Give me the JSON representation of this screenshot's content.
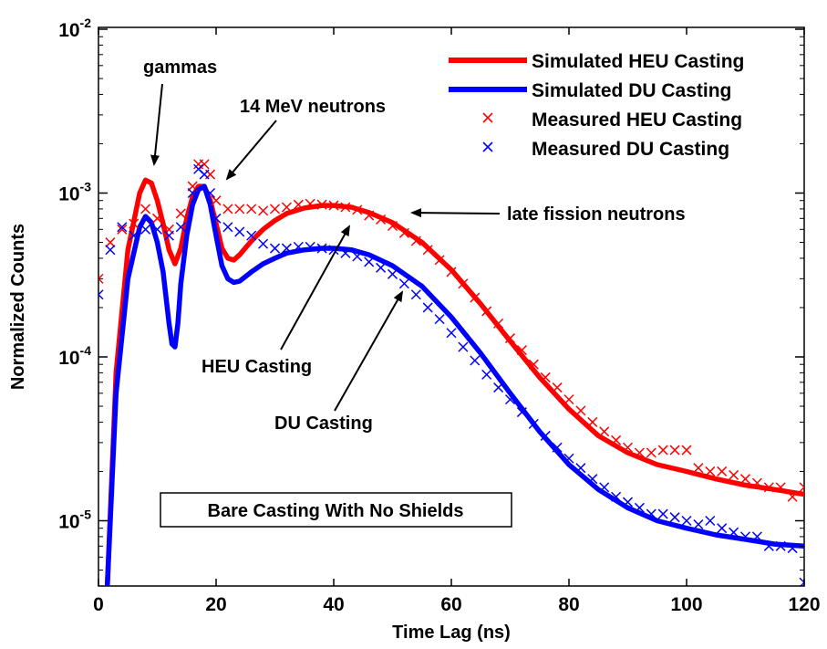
{
  "chart_data": {
    "type": "line",
    "title": "",
    "xlabel": "Time Lag (ns)",
    "ylabel": "Normalized Counts",
    "xlim": [
      0,
      120
    ],
    "ylim": [
      4e-06,
      0.01
    ],
    "yscale": "log",
    "grid": false,
    "legend_position": "top-right",
    "x_ticks": [
      "0",
      "20",
      "40",
      "60",
      "80",
      "100",
      "120"
    ],
    "y_ticks": [
      {
        "base": "10",
        "exp": "-5",
        "value": 1e-05
      },
      {
        "base": "10",
        "exp": "-4",
        "value": 0.0001
      },
      {
        "base": "10",
        "exp": "-3",
        "value": 0.001
      },
      {
        "base": "10",
        "exp": "-2",
        "value": 0.01
      }
    ],
    "series": [
      {
        "name": "Simulated HEU Casting",
        "kind": "line",
        "color": "#ff0000",
        "x": [
          1.5,
          3,
          5,
          7,
          8,
          9,
          10,
          11,
          12,
          13,
          14,
          15,
          16,
          17,
          18,
          19,
          20,
          21,
          22,
          23,
          24,
          26,
          28,
          30,
          32,
          35,
          38,
          40,
          43,
          46,
          50,
          55,
          60,
          65,
          70,
          75,
          80,
          85,
          90,
          95,
          100,
          105,
          110,
          115,
          120
        ],
        "y": [
          4e-06,
          8e-05,
          0.00045,
          0.001,
          0.0012,
          0.00115,
          0.0009,
          0.00065,
          0.00045,
          0.00037,
          0.00046,
          0.0007,
          0.00095,
          0.0011,
          0.0011,
          0.0009,
          0.00065,
          0.00046,
          0.0004,
          0.00039,
          0.00042,
          0.00051,
          0.0006,
          0.00068,
          0.00075,
          0.00081,
          0.00084,
          0.00084,
          0.00082,
          0.00076,
          0.00066,
          0.0005,
          0.00034,
          0.00021,
          0.000125,
          7.5e-05,
          4.8e-05,
          3.3e-05,
          2.6e-05,
          2.2e-05,
          2e-05,
          1.8e-05,
          1.65e-05,
          1.55e-05,
          1.45e-05
        ]
      },
      {
        "name": "Simulated DU Casting",
        "kind": "line",
        "color": "#0000ff",
        "x": [
          1.5,
          3,
          5,
          7,
          8,
          9,
          10,
          11,
          12,
          12.5,
          13,
          13.5,
          14,
          15,
          16,
          17,
          18,
          19,
          20,
          21,
          22,
          23,
          24,
          26,
          28,
          30,
          32,
          35,
          38,
          40,
          43,
          46,
          50,
          55,
          60,
          65,
          70,
          75,
          80,
          85,
          90,
          95,
          100,
          105,
          110,
          115,
          120
        ],
        "y": [
          4e-06,
          6e-05,
          0.0003,
          0.00062,
          0.00072,
          0.00066,
          0.0005,
          0.00033,
          0.00016,
          0.00012,
          0.000115,
          0.00016,
          0.00028,
          0.00055,
          0.00085,
          0.00105,
          0.0011,
          0.00085,
          0.00055,
          0.00036,
          0.0003,
          0.000285,
          0.00029,
          0.00033,
          0.00037,
          0.0004,
          0.00043,
          0.00045,
          0.00046,
          0.00046,
          0.00045,
          0.00042,
          0.00036,
          0.00027,
          0.000175,
          0.000105,
          6e-05,
          3.5e-05,
          2.2e-05,
          1.55e-05,
          1.2e-05,
          1e-05,
          9e-06,
          8.2e-06,
          7.7e-06,
          7.2e-06,
          7e-06
        ]
      },
      {
        "name": "Measured HEU Casting",
        "kind": "scatter",
        "marker": "x",
        "color": "#ff0000",
        "x": [
          0,
          2,
          4,
          6,
          8,
          10,
          12,
          14,
          16,
          17,
          18,
          19,
          20,
          22,
          24,
          26,
          28,
          30,
          32,
          34,
          36,
          38,
          40,
          42,
          44,
          46,
          48,
          50,
          52,
          54,
          56,
          58,
          60,
          62,
          64,
          66,
          68,
          70,
          72,
          74,
          76,
          78,
          80,
          82,
          84,
          86,
          88,
          90,
          92,
          94,
          96,
          98,
          100,
          102,
          104,
          106,
          108,
          110,
          112,
          114,
          116,
          118,
          120
        ],
        "y": [
          0.0003,
          0.0005,
          0.0006,
          0.00065,
          0.0008,
          0.0007,
          0.0006,
          0.00075,
          0.0011,
          0.0015,
          0.0015,
          0.0013,
          0.0009,
          0.0008,
          0.0008,
          0.0008,
          0.00078,
          0.0008,
          0.00082,
          0.00085,
          0.00086,
          0.00085,
          0.00084,
          0.00082,
          0.00079,
          0.00073,
          0.00069,
          0.00063,
          0.00057,
          0.00051,
          0.00045,
          0.00039,
          0.00033,
          0.00028,
          0.00023,
          0.00019,
          0.00016,
          0.00013,
          0.00011,
          9e-05,
          7.5e-05,
          6.5e-05,
          5.5e-05,
          4.7e-05,
          4e-05,
          3.5e-05,
          3.1e-05,
          2.8e-05,
          2.6e-05,
          2.6e-05,
          2.7e-05,
          2.7e-05,
          2.7e-05,
          2.1e-05,
          2e-05,
          2e-05,
          1.9e-05,
          1.8e-05,
          1.7e-05,
          1.6e-05,
          1.6e-05,
          1.4e-05,
          1.6e-05
        ]
      },
      {
        "name": "Measured DU Casting",
        "kind": "scatter",
        "marker": "x",
        "color": "#0000ff",
        "x": [
          0,
          2,
          4,
          6,
          8,
          10,
          12,
          14,
          16,
          17,
          18,
          19,
          20,
          22,
          24,
          26,
          28,
          30,
          32,
          34,
          36,
          38,
          40,
          42,
          44,
          46,
          48,
          50,
          52,
          54,
          56,
          58,
          60,
          62,
          64,
          66,
          68,
          70,
          72,
          74,
          76,
          78,
          80,
          82,
          84,
          86,
          88,
          90,
          92,
          94,
          96,
          98,
          100,
          102,
          104,
          106,
          108,
          110,
          112,
          114,
          116,
          118,
          120
        ],
        "y": [
          0.00024,
          0.00045,
          0.00062,
          0.00055,
          0.0006,
          0.0006,
          0.00055,
          0.00062,
          0.001,
          0.0014,
          0.0013,
          0.001,
          0.0007,
          0.00062,
          0.00058,
          0.00055,
          0.00049,
          0.00046,
          0.00046,
          0.00047,
          0.00047,
          0.00046,
          0.00045,
          0.00043,
          0.00041,
          0.00038,
          0.00035,
          0.00032,
          0.00028,
          0.00024,
          0.0002,
          0.00017,
          0.00014,
          0.000115,
          9.5e-05,
          7.8e-05,
          6.5e-05,
          5.5e-05,
          4.6e-05,
          3.9e-05,
          3.3e-05,
          2.8e-05,
          2.4e-05,
          2.1e-05,
          1.8e-05,
          1.6e-05,
          1.4e-05,
          1.3e-05,
          1.2e-05,
          1.1e-05,
          1.1e-05,
          1.05e-05,
          1e-05,
          9.5e-06,
          1e-05,
          9e-06,
          8.5e-06,
          8e-06,
          8e-06,
          7e-06,
          7e-06,
          6.8e-06,
          4.2e-06
        ]
      }
    ],
    "annotations": [
      {
        "id": "gammas",
        "text": "gammas"
      },
      {
        "id": "mev14",
        "text": "14 MeV neutrons"
      },
      {
        "id": "late",
        "text": "late fission neutrons"
      },
      {
        "id": "heu",
        "text": "HEU Casting"
      },
      {
        "id": "du",
        "text": "DU Casting"
      },
      {
        "id": "box",
        "text": "Bare Casting With No Shields"
      }
    ]
  }
}
